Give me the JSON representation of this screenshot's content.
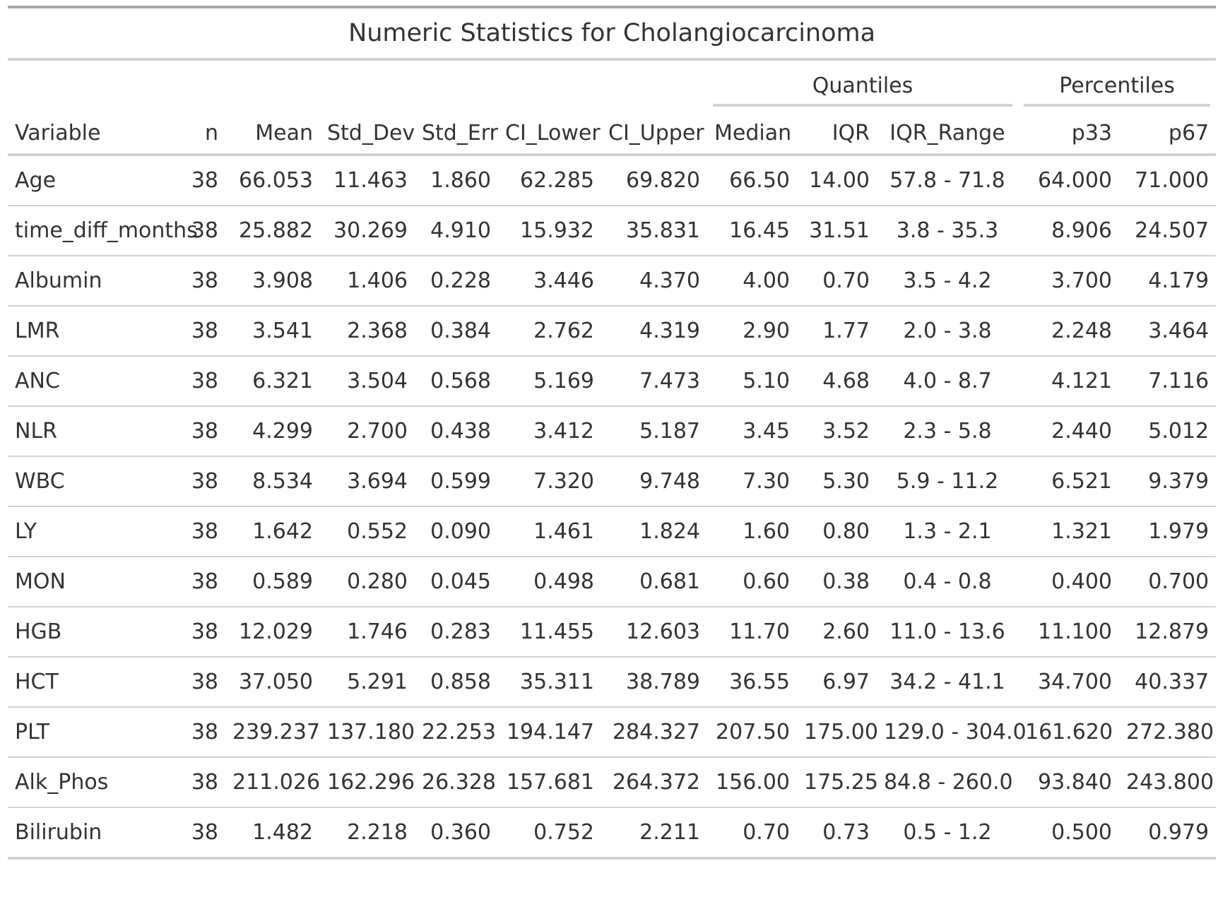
{
  "title": "Numeric Statistics for Cholangiocarcinoma",
  "spanners": {
    "quantiles": "Quantiles",
    "percentiles": "Percentiles"
  },
  "columns": [
    "Variable",
    "n",
    "Mean",
    "Std_Dev",
    "Std_Err",
    "CI_Lower",
    "CI_Upper",
    "Median",
    "IQR",
    "IQR_Range",
    "p33",
    "p67"
  ],
  "rows": [
    [
      "Age",
      "38",
      "66.053",
      "11.463",
      "1.860",
      "62.285",
      "69.820",
      "66.50",
      "14.00",
      "57.8 - 71.8",
      "64.000",
      "71.000"
    ],
    [
      "time_diff_months",
      "38",
      "25.882",
      "30.269",
      "4.910",
      "15.932",
      "35.831",
      "16.45",
      "31.51",
      "3.8 - 35.3",
      "8.906",
      "24.507"
    ],
    [
      "Albumin",
      "38",
      "3.908",
      "1.406",
      "0.228",
      "3.446",
      "4.370",
      "4.00",
      "0.70",
      "3.5 - 4.2",
      "3.700",
      "4.179"
    ],
    [
      "LMR",
      "38",
      "3.541",
      "2.368",
      "0.384",
      "2.762",
      "4.319",
      "2.90",
      "1.77",
      "2.0 - 3.8",
      "2.248",
      "3.464"
    ],
    [
      "ANC",
      "38",
      "6.321",
      "3.504",
      "0.568",
      "5.169",
      "7.473",
      "5.10",
      "4.68",
      "4.0 - 8.7",
      "4.121",
      "7.116"
    ],
    [
      "NLR",
      "38",
      "4.299",
      "2.700",
      "0.438",
      "3.412",
      "5.187",
      "3.45",
      "3.52",
      "2.3 - 5.8",
      "2.440",
      "5.012"
    ],
    [
      "WBC",
      "38",
      "8.534",
      "3.694",
      "0.599",
      "7.320",
      "9.748",
      "7.30",
      "5.30",
      "5.9 - 11.2",
      "6.521",
      "9.379"
    ],
    [
      "LY",
      "38",
      "1.642",
      "0.552",
      "0.090",
      "1.461",
      "1.824",
      "1.60",
      "0.80",
      "1.3 - 2.1",
      "1.321",
      "1.979"
    ],
    [
      "MON",
      "38",
      "0.589",
      "0.280",
      "0.045",
      "0.498",
      "0.681",
      "0.60",
      "0.38",
      "0.4 - 0.8",
      "0.400",
      "0.700"
    ],
    [
      "HGB",
      "38",
      "12.029",
      "1.746",
      "0.283",
      "11.455",
      "12.603",
      "11.70",
      "2.60",
      "11.0 - 13.6",
      "11.100",
      "12.879"
    ],
    [
      "HCT",
      "38",
      "37.050",
      "5.291",
      "0.858",
      "35.311",
      "38.789",
      "36.55",
      "6.97",
      "34.2 - 41.1",
      "34.700",
      "40.337"
    ],
    [
      "PLT",
      "38",
      "239.237",
      "137.180",
      "22.253",
      "194.147",
      "284.327",
      "207.50",
      "175.00",
      "129.0 - 304.0",
      "161.620",
      "272.380"
    ],
    [
      "Alk_Phos",
      "38",
      "211.026",
      "162.296",
      "26.328",
      "157.681",
      "264.372",
      "156.00",
      "175.25",
      "84.8 - 260.0",
      "93.840",
      "243.800"
    ],
    [
      "Bilirubin",
      "38",
      "1.482",
      "2.218",
      "0.360",
      "0.752",
      "2.211",
      "0.70",
      "0.73",
      "0.5 - 1.2",
      "0.500",
      "0.979"
    ]
  ]
}
